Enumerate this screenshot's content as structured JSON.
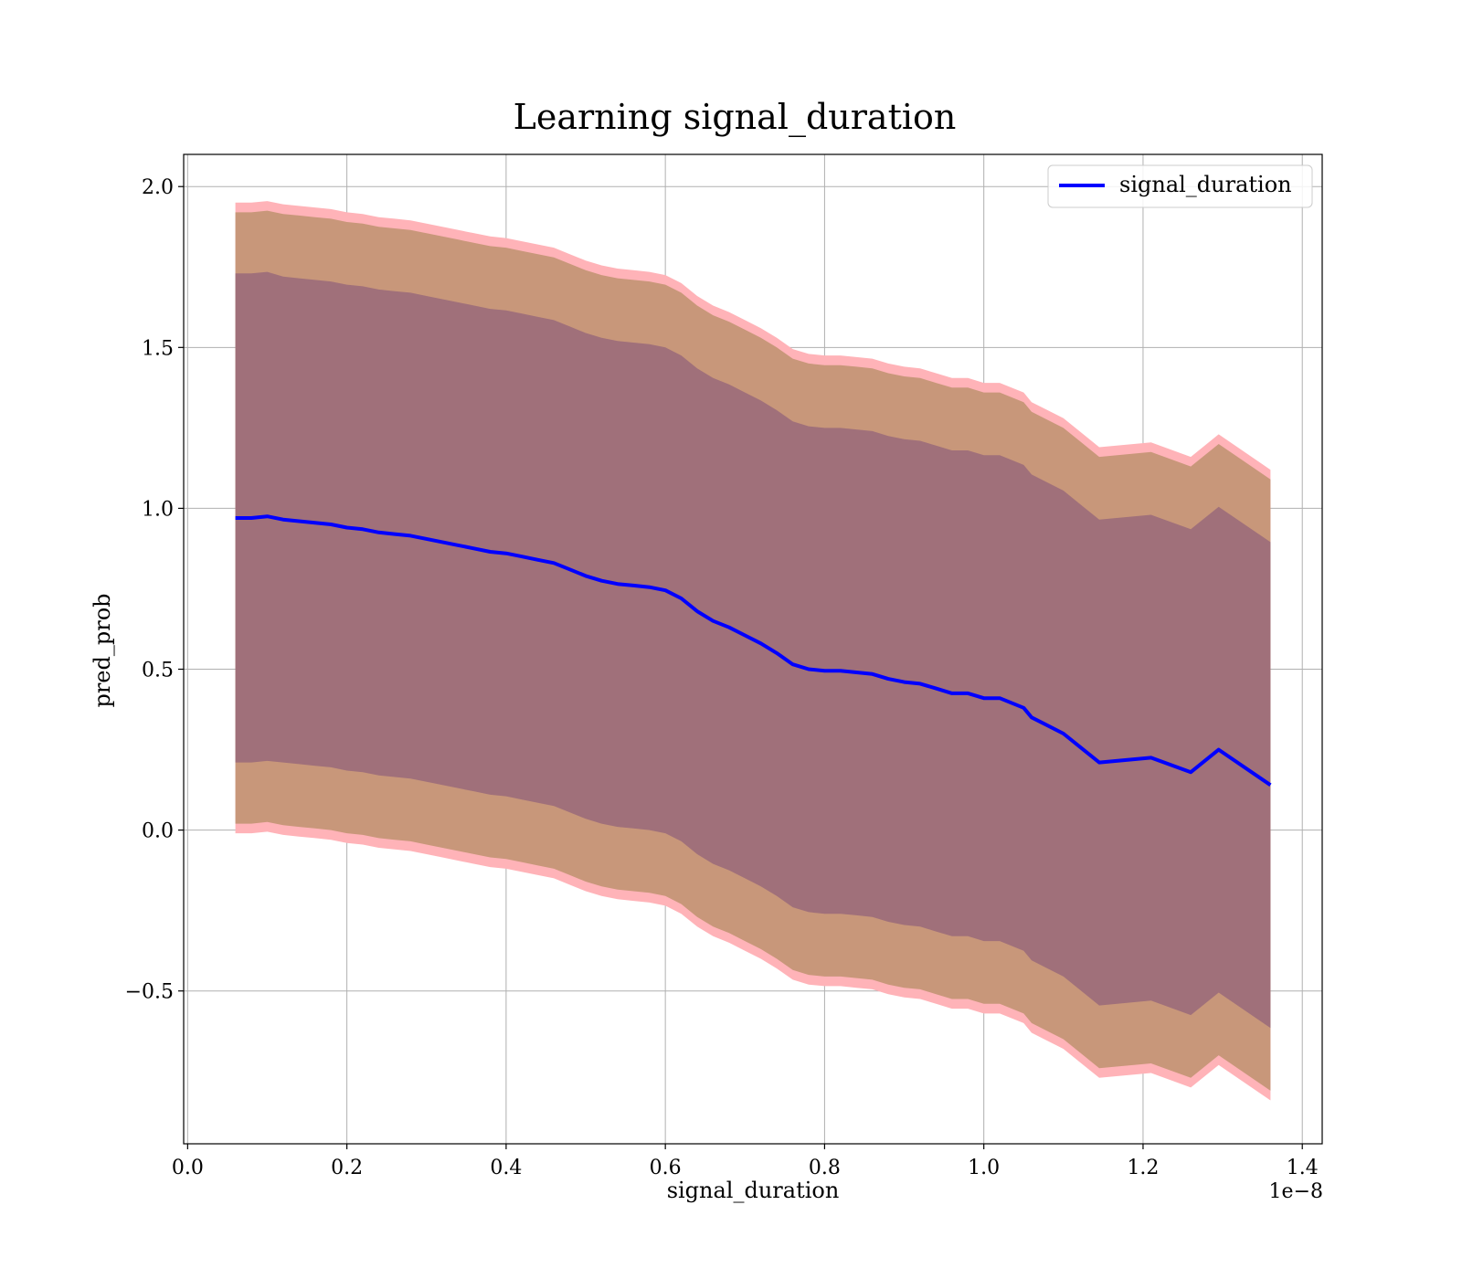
{
  "chart_data": {
    "type": "line",
    "title": "Learning signal_duration",
    "xlabel": "signal_duration",
    "ylabel": "pred_prob",
    "x_offset_text": "1e−8",
    "xlim": [
      -0.005,
      1.425
    ],
    "ylim": [
      -0.975,
      2.1
    ],
    "xticks": [
      0.0,
      0.2,
      0.4,
      0.6,
      0.8,
      1.0,
      1.2,
      1.4
    ],
    "xtick_labels": [
      "0.0",
      "0.2",
      "0.4",
      "0.6",
      "0.8",
      "1.0",
      "1.2",
      "1.4"
    ],
    "yticks": [
      -0.5,
      0.0,
      0.5,
      1.0,
      1.5,
      2.0
    ],
    "ytick_labels": [
      "−0.5",
      "0.0",
      "0.5",
      "1.0",
      "1.5",
      "2.0"
    ],
    "grid": true,
    "legend_position": "top-right",
    "series": [
      {
        "name": "signal_duration",
        "color": "#0000ff",
        "x": [
          0.06,
          0.08,
          0.1,
          0.12,
          0.14,
          0.16,
          0.18,
          0.2,
          0.22,
          0.24,
          0.26,
          0.28,
          0.3,
          0.32,
          0.34,
          0.36,
          0.38,
          0.4,
          0.42,
          0.44,
          0.46,
          0.48,
          0.5,
          0.52,
          0.54,
          0.56,
          0.58,
          0.6,
          0.62,
          0.64,
          0.66,
          0.68,
          0.7,
          0.72,
          0.74,
          0.76,
          0.78,
          0.8,
          0.82,
          0.84,
          0.86,
          0.88,
          0.9,
          0.92,
          0.94,
          0.96,
          0.98,
          1.0,
          1.02,
          1.05,
          1.06,
          1.1,
          1.125,
          1.145,
          1.21,
          1.26,
          1.295,
          1.36
        ],
        "y": [
          0.97,
          0.97,
          0.975,
          0.965,
          0.96,
          0.955,
          0.95,
          0.94,
          0.935,
          0.925,
          0.92,
          0.915,
          0.905,
          0.895,
          0.885,
          0.875,
          0.865,
          0.86,
          0.85,
          0.84,
          0.83,
          0.81,
          0.79,
          0.775,
          0.765,
          0.76,
          0.755,
          0.745,
          0.72,
          0.68,
          0.65,
          0.63,
          0.605,
          0.58,
          0.55,
          0.515,
          0.5,
          0.495,
          0.495,
          0.49,
          0.485,
          0.47,
          0.46,
          0.455,
          0.44,
          0.425,
          0.425,
          0.41,
          0.41,
          0.38,
          0.35,
          0.3,
          0.25,
          0.21,
          0.225,
          0.18,
          0.25,
          0.14
        ],
        "band_inner": [
          0.76,
          0.76,
          0.76,
          0.755,
          0.755,
          0.755,
          0.755,
          0.755,
          0.755,
          0.755,
          0.755,
          0.755,
          0.755,
          0.755,
          0.755,
          0.755,
          0.755,
          0.755,
          0.755,
          0.755,
          0.755,
          0.755,
          0.755,
          0.755,
          0.755,
          0.755,
          0.755,
          0.755,
          0.755,
          0.755,
          0.755,
          0.755,
          0.755,
          0.755,
          0.755,
          0.755,
          0.755,
          0.755,
          0.755,
          0.755,
          0.755,
          0.755,
          0.755,
          0.755,
          0.755,
          0.755,
          0.755,
          0.755,
          0.755,
          0.755,
          0.755,
          0.755,
          0.755,
          0.755,
          0.755,
          0.755,
          0.755,
          0.755
        ],
        "band_outer": [
          0.95,
          0.95,
          0.95,
          0.95,
          0.95,
          0.95,
          0.95,
          0.95,
          0.95,
          0.95,
          0.95,
          0.95,
          0.95,
          0.95,
          0.95,
          0.95,
          0.95,
          0.95,
          0.95,
          0.95,
          0.95,
          0.95,
          0.95,
          0.95,
          0.95,
          0.95,
          0.95,
          0.95,
          0.95,
          0.95,
          0.95,
          0.95,
          0.95,
          0.95,
          0.95,
          0.95,
          0.95,
          0.95,
          0.95,
          0.95,
          0.95,
          0.95,
          0.95,
          0.95,
          0.95,
          0.95,
          0.95,
          0.95,
          0.95,
          0.95,
          0.95,
          0.95,
          0.95,
          0.95,
          0.95,
          0.95,
          0.95,
          0.95
        ],
        "band_extreme": [
          0.98,
          0.98,
          0.98,
          0.98,
          0.98,
          0.98,
          0.98,
          0.98,
          0.98,
          0.98,
          0.98,
          0.98,
          0.98,
          0.98,
          0.98,
          0.98,
          0.98,
          0.98,
          0.98,
          0.98,
          0.98,
          0.98,
          0.98,
          0.98,
          0.98,
          0.98,
          0.98,
          0.98,
          0.98,
          0.98,
          0.98,
          0.98,
          0.98,
          0.98,
          0.98,
          0.98,
          0.98,
          0.98,
          0.98,
          0.98,
          0.98,
          0.98,
          0.98,
          0.98,
          0.98,
          0.98,
          0.98,
          0.98,
          0.98,
          0.98,
          0.98,
          0.98,
          0.98,
          0.98,
          0.98,
          0.98,
          0.98,
          0.98
        ]
      }
    ],
    "colors": {
      "band_extreme": "#ffb3b8",
      "band_outer": "#c8977a",
      "band_inner": "#a0707a",
      "line": "#0000ff",
      "grid": "#b0b0b0"
    }
  }
}
